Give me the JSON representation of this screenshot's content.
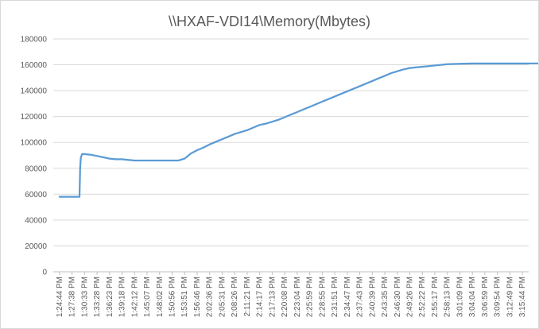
{
  "chart_data": {
    "type": "line",
    "title": "\\\\HXAF-VDI14\\Memory(Mbytes)",
    "xlabel": "",
    "ylabel": "",
    "ylim": [
      0,
      180000
    ],
    "yticks": [
      0,
      20000,
      40000,
      60000,
      80000,
      100000,
      120000,
      140000,
      160000,
      180000
    ],
    "y_tick_labels": [
      "0",
      "20000",
      "40000",
      "60000",
      "80000",
      "100000",
      "120000",
      "140000",
      "160000",
      "180000"
    ],
    "grid": true,
    "legend": "none",
    "line_color": "#5b9bd5",
    "x_tick_labels": [
      "1:24:44 PM",
      "1:27:38 PM",
      "1:30:33 PM",
      "1:33:28 PM",
      "1:36:23 PM",
      "1:39:18 PM",
      "1:42:12 PM",
      "1:45:07 PM",
      "1:48:02 PM",
      "1:50:56 PM",
      "1:53:51 PM",
      "1:56:46 PM",
      "2:02:36 PM",
      "2:05:31 PM",
      "2:08:26 PM",
      "2:11:21 PM",
      "2:14:17 PM",
      "2:17:13 PM",
      "2:20:08 PM",
      "2:23:04 PM",
      "2:25:59 PM",
      "2:28:55 PM",
      "2:31:51 PM",
      "2:34:47 PM",
      "2:37:43 PM",
      "2:40:39 PM",
      "2:43:35 PM",
      "2:46:30 PM",
      "2:49:26 PM",
      "2:52:22 PM",
      "2:55:17 PM",
      "2:58:13 PM",
      "3:01:09 PM",
      "3:04:04 PM",
      "3:06:59 PM",
      "3:09:54 PM",
      "3:12:49 PM",
      "3:15:44 PM"
    ],
    "series": [
      {
        "x": [
          0,
          1.6,
          1.65,
          1.7,
          1.8,
          2,
          2.5,
          3,
          3.5,
          4,
          4.5,
          5,
          5.5,
          6,
          7,
          8,
          9,
          9.5,
          10,
          10.5,
          11,
          11.5,
          12,
          12.5,
          13,
          13.5,
          14,
          14.5,
          15,
          15.5,
          16,
          16.5,
          17,
          17.5,
          18,
          18.5,
          19,
          19.5,
          20,
          20.5,
          21,
          21.5,
          22,
          22.5,
          23,
          23.5,
          24,
          24.5,
          25,
          25.5,
          26,
          26.5,
          27,
          27.5,
          28,
          28.5,
          29,
          29.5,
          30,
          30.5,
          31,
          32,
          33,
          34,
          35,
          36,
          37,
          38,
          39.3
        ],
        "y": [
          58000,
          58000,
          80000,
          88000,
          91000,
          91000,
          90500,
          89500,
          88500,
          87500,
          87000,
          87000,
          86500,
          86000,
          86000,
          86000,
          86000,
          86000,
          87500,
          91500,
          94000,
          96000,
          98500,
          100500,
          102500,
          104500,
          106500,
          108000,
          109500,
          111500,
          113500,
          114500,
          116000,
          117500,
          119500,
          121500,
          123500,
          125500,
          127500,
          129500,
          131500,
          133500,
          135500,
          137500,
          139500,
          141500,
          143500,
          145500,
          147500,
          149500,
          151500,
          153500,
          155000,
          156500,
          157500,
          158000,
          158500,
          159000,
          159500,
          160000,
          160500,
          160800,
          161000,
          161000,
          161000,
          161000,
          161000,
          161000,
          161000
        ]
      }
    ]
  }
}
